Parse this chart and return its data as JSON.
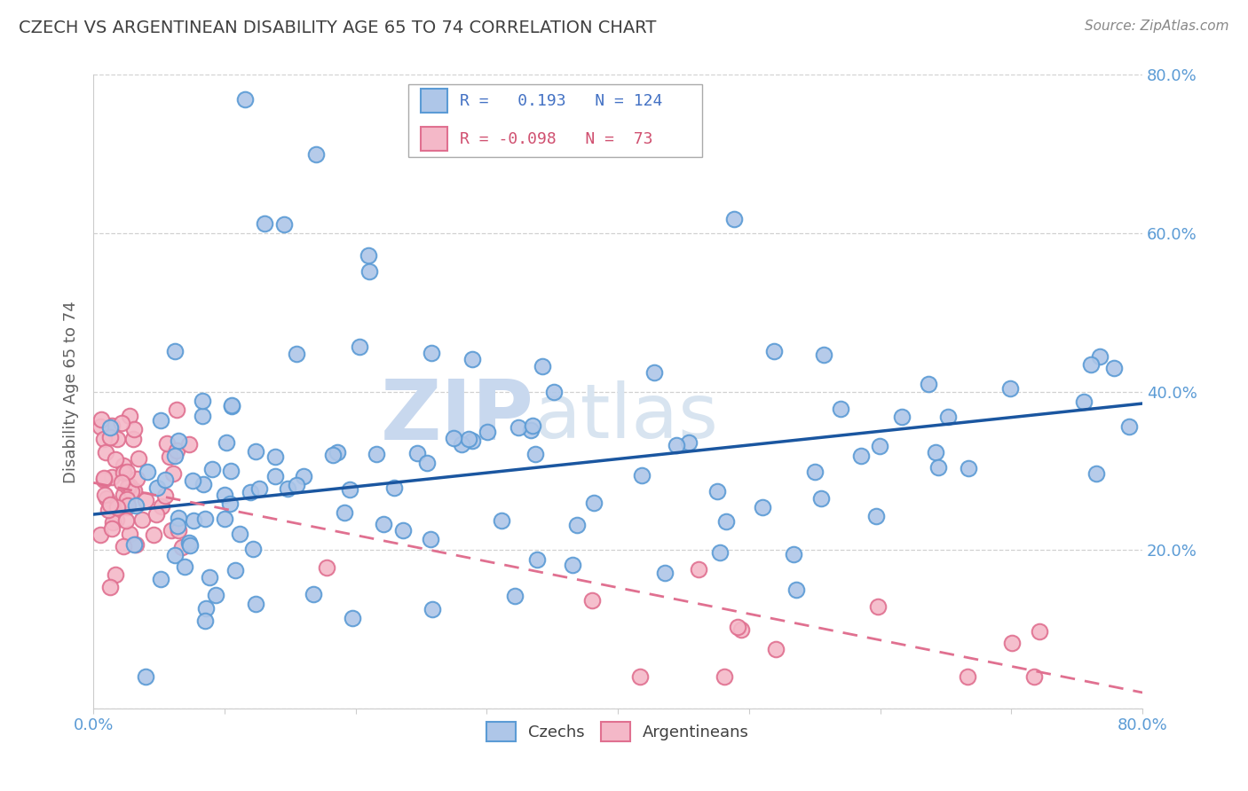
{
  "title": "CZECH VS ARGENTINEAN DISABILITY AGE 65 TO 74 CORRELATION CHART",
  "source_text": "Source: ZipAtlas.com",
  "ylabel": "Disability Age 65 to 74",
  "czech_R": 0.193,
  "czech_N": 124,
  "arg_R": -0.098,
  "arg_N": 73,
  "czech_color": "#aec6e8",
  "czech_edge_color": "#5b9bd5",
  "arg_color": "#f4b8c8",
  "arg_edge_color": "#e07090",
  "czech_line_color": "#1a56a0",
  "arg_line_color": "#e07090",
  "background_color": "#ffffff",
  "grid_color": "#cccccc",
  "title_color": "#404040",
  "watermark_zip_color": "#c8d8ee",
  "watermark_atlas_color": "#d8e4f0",
  "legend_R_color_czech": "#4472c4",
  "legend_R_color_arg": "#d05070",
  "tick_label_color": "#5b9bd5",
  "xlim": [
    0.0,
    0.8
  ],
  "ylim": [
    0.0,
    0.8
  ],
  "czech_line_x0": 0.0,
  "czech_line_y0": 0.245,
  "czech_line_x1": 0.8,
  "czech_line_y1": 0.385,
  "arg_line_x0": 0.0,
  "arg_line_y0": 0.285,
  "arg_line_x1": 0.8,
  "arg_line_y1": 0.02
}
